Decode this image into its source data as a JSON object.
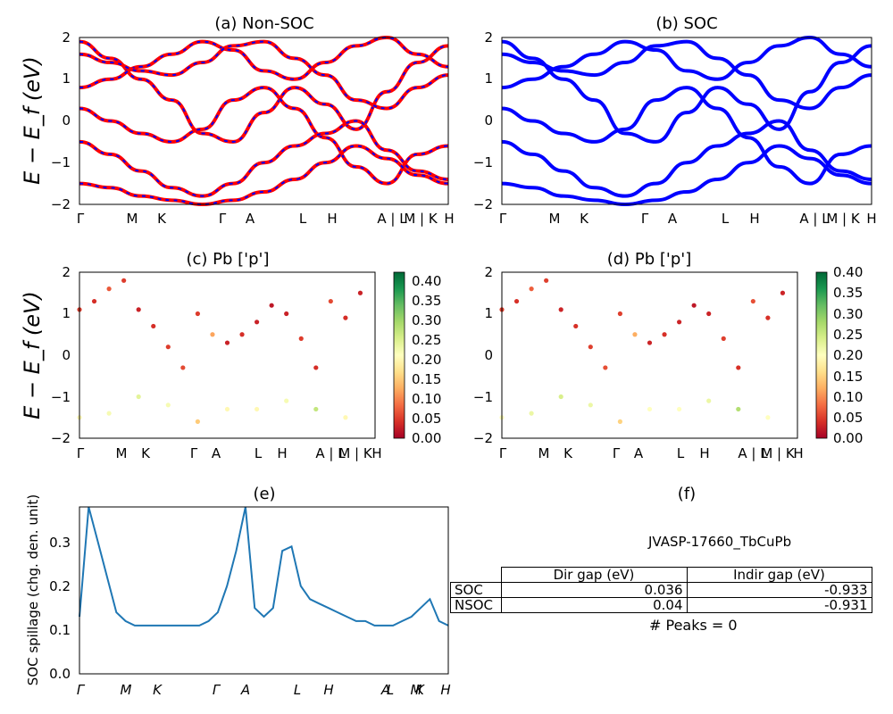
{
  "panels": {
    "a": {
      "title": "(a) Non-SOC",
      "ylabel": "E − E_f (eV)",
      "ylim": [
        -2,
        2
      ],
      "yticks": [
        "2",
        "1",
        "0",
        "−1",
        "−2"
      ],
      "kpoints": [
        "Γ",
        "M",
        "K",
        "Γ",
        "A",
        "L",
        "H",
        "A | L",
        "M | K",
        "H"
      ],
      "colors": {
        "band": "#ff0000",
        "dash": "#0000ff"
      }
    },
    "b": {
      "title": "(b) SOC",
      "ylim": [
        -2,
        2
      ],
      "yticks": [
        "2",
        "1",
        "0",
        "−1",
        "−2"
      ],
      "kpoints": [
        "Γ",
        "M",
        "K",
        "Γ",
        "A",
        "L",
        "H",
        "A | L",
        "M | K",
        "H"
      ],
      "colors": {
        "band": "#0000ff"
      }
    },
    "c": {
      "title": "(c)  Pb ['p']",
      "ylabel": "E − E_f (eV)",
      "yticks": [
        "2",
        "1",
        "0",
        "−1",
        "−2"
      ],
      "kpoints": [
        "Γ",
        "M",
        "K",
        "Γ",
        "A",
        "L",
        "H",
        "A | L",
        "M | K",
        "H"
      ],
      "colorbar_ticks": [
        "0.40",
        "0.35",
        "0.30",
        "0.25",
        "0.20",
        "0.15",
        "0.10",
        "0.05",
        "0.00"
      ]
    },
    "d": {
      "title": "(d) Pb ['p']",
      "yticks": [
        "2",
        "1",
        "0",
        "−1",
        "−2"
      ],
      "kpoints": [
        "Γ",
        "M",
        "K",
        "Γ",
        "A",
        "L",
        "H",
        "A | L",
        "M | K",
        "H"
      ],
      "colorbar_ticks": [
        "0.40",
        "0.35",
        "0.30",
        "0.25",
        "0.20",
        "0.15",
        "0.10",
        "0.05",
        "0.00"
      ]
    },
    "e": {
      "title": "(e)",
      "ylabel": "SOC spillage (chg. den. unit)",
      "yticks": [
        "0.3",
        "0.2",
        "0.1",
        "0.0"
      ],
      "kpoints": [
        "Γ",
        "M",
        "K",
        "Γ",
        "A",
        "L",
        "H",
        "A",
        "L",
        "M",
        "K",
        "H"
      ]
    },
    "f": {
      "title": "(f)",
      "material": "JVASP-17660_TbCuPb",
      "table": {
        "headers": [
          "Dir gap (eV)",
          "Indir gap (eV)"
        ],
        "rows": [
          {
            "label": "SOC",
            "dir": "0.036",
            "indir": "-0.933"
          },
          {
            "label": "NSOC",
            "dir": "0.04",
            "indir": "-0.931"
          }
        ]
      },
      "peaks": "# Peaks = 0"
    }
  },
  "chart_data": [
    {
      "type": "line",
      "title": "(a) Non-SOC",
      "ylabel": "E − E_f (eV)",
      "ylim": [
        -2,
        2
      ],
      "x_tick_labels": [
        "Γ",
        "M",
        "K",
        "Γ",
        "A",
        "L",
        "H",
        "A | L",
        "M | K",
        "H"
      ],
      "series": [
        {
          "values": [
            1.9,
            1.5,
            1.0,
            0.5,
            -0.3,
            -0.5,
            0.2,
            0.8,
            0.4,
            -0.2,
            0.7,
            1.4,
            1.8
          ]
        },
        {
          "values": [
            0.3,
            0.0,
            -0.3,
            -0.5,
            -0.2,
            0.5,
            0.8,
            0.3,
            -0.4,
            -1.1,
            -1.5,
            -0.8,
            -0.6
          ]
        },
        {
          "values": [
            0.8,
            1.0,
            1.3,
            1.6,
            1.9,
            1.7,
            1.2,
            1.0,
            1.4,
            1.8,
            2.0,
            1.6,
            1.3
          ]
        },
        {
          "values": [
            -0.5,
            -0.8,
            -1.2,
            -1.6,
            -1.8,
            -1.5,
            -1.0,
            -0.6,
            -0.3,
            0.0,
            -0.7,
            -1.2,
            -1.4
          ]
        },
        {
          "values": [
            -1.5,
            -1.6,
            -1.8,
            -1.9,
            -2.0,
            -1.9,
            -1.7,
            -1.4,
            -1.0,
            -0.6,
            -0.9,
            -1.3,
            -1.5
          ]
        },
        {
          "values": [
            1.6,
            1.4,
            1.2,
            1.1,
            1.4,
            1.8,
            1.9,
            1.5,
            1.1,
            0.5,
            0.3,
            0.8,
            1.1
          ]
        }
      ]
    },
    {
      "type": "line",
      "title": "(b) SOC",
      "ylim": [
        -2,
        2
      ],
      "x_tick_labels": [
        "Γ",
        "M",
        "K",
        "Γ",
        "A",
        "L",
        "H",
        "A | L",
        "M | K",
        "H"
      ],
      "series": [
        {
          "values": [
            1.9,
            1.5,
            1.0,
            0.5,
            -0.3,
            -0.5,
            0.2,
            0.8,
            0.4,
            -0.2,
            0.7,
            1.4,
            1.8
          ]
        },
        {
          "values": [
            0.3,
            0.0,
            -0.3,
            -0.5,
            -0.2,
            0.5,
            0.8,
            0.3,
            -0.4,
            -1.1,
            -1.5,
            -0.8,
            -0.6
          ]
        },
        {
          "values": [
            0.8,
            1.0,
            1.3,
            1.6,
            1.9,
            1.7,
            1.2,
            1.0,
            1.4,
            1.8,
            2.0,
            1.6,
            1.3
          ]
        },
        {
          "values": [
            -0.5,
            -0.8,
            -1.2,
            -1.6,
            -1.8,
            -1.5,
            -1.0,
            -0.6,
            -0.3,
            0.0,
            -0.7,
            -1.2,
            -1.4
          ]
        },
        {
          "values": [
            -1.5,
            -1.6,
            -1.8,
            -1.9,
            -2.0,
            -1.9,
            -1.7,
            -1.4,
            -1.0,
            -0.6,
            -0.9,
            -1.3,
            -1.5
          ]
        },
        {
          "values": [
            1.6,
            1.4,
            1.2,
            1.1,
            1.4,
            1.8,
            1.9,
            1.5,
            1.1,
            0.5,
            0.3,
            0.8,
            1.1
          ]
        }
      ]
    },
    {
      "type": "scatter",
      "title": "(c)  Pb ['p']",
      "ylim": [
        -2,
        2
      ],
      "colorbar_range": [
        0.0,
        0.42
      ],
      "colormap": [
        "#a50026",
        "#d73027",
        "#f46d43",
        "#fdae61",
        "#fee08b",
        "#ffffbf",
        "#d9ef8b",
        "#a6d96a",
        "#66bd63",
        "#1a9850",
        "#006837"
      ],
      "points": [
        {
          "x": 0.0,
          "y": 1.1,
          "w": 0.05
        },
        {
          "x": 0.05,
          "y": 1.3,
          "w": 0.04
        },
        {
          "x": 0.1,
          "y": 1.6,
          "w": 0.07
        },
        {
          "x": 0.15,
          "y": 1.8,
          "w": 0.05
        },
        {
          "x": 0.2,
          "y": 1.1,
          "w": 0.03
        },
        {
          "x": 0.25,
          "y": 0.7,
          "w": 0.04
        },
        {
          "x": 0.3,
          "y": 0.2,
          "w": 0.05
        },
        {
          "x": 0.35,
          "y": -0.3,
          "w": 0.06
        },
        {
          "x": 0.4,
          "y": 1.0,
          "w": 0.05
        },
        {
          "x": 0.45,
          "y": 0.5,
          "w": 0.12
        },
        {
          "x": 0.5,
          "y": 0.3,
          "w": 0.03
        },
        {
          "x": 0.55,
          "y": 0.5,
          "w": 0.04
        },
        {
          "x": 0.6,
          "y": 0.8,
          "w": 0.03
        },
        {
          "x": 0.65,
          "y": 1.2,
          "w": 0.02
        },
        {
          "x": 0.7,
          "y": 1.0,
          "w": 0.03
        },
        {
          "x": 0.75,
          "y": 0.4,
          "w": 0.05
        },
        {
          "x": 0.8,
          "y": -0.3,
          "w": 0.04
        },
        {
          "x": 0.85,
          "y": 1.3,
          "w": 0.06
        },
        {
          "x": 0.9,
          "y": 0.9,
          "w": 0.04
        },
        {
          "x": 0.95,
          "y": 1.5,
          "w": 0.03
        },
        {
          "x": 0.0,
          "y": -1.5,
          "w": 0.2
        },
        {
          "x": 0.1,
          "y": -1.4,
          "w": 0.22
        },
        {
          "x": 0.2,
          "y": -1.0,
          "w": 0.24
        },
        {
          "x": 0.3,
          "y": -1.2,
          "w": 0.22
        },
        {
          "x": 0.4,
          "y": -1.6,
          "w": 0.15
        },
        {
          "x": 0.5,
          "y": -1.3,
          "w": 0.2
        },
        {
          "x": 0.6,
          "y": -1.3,
          "w": 0.2
        },
        {
          "x": 0.7,
          "y": -1.1,
          "w": 0.22
        },
        {
          "x": 0.8,
          "y": -1.3,
          "w": 0.27
        },
        {
          "x": 0.9,
          "y": -1.5,
          "w": 0.2
        }
      ]
    },
    {
      "type": "scatter",
      "title": "(d) Pb ['p']",
      "ylim": [
        -2,
        2
      ],
      "colorbar_range": [
        0.0,
        0.4
      ],
      "colormap": [
        "#a50026",
        "#d73027",
        "#f46d43",
        "#fdae61",
        "#fee08b",
        "#ffffbf",
        "#d9ef8b",
        "#a6d96a",
        "#66bd63",
        "#1a9850",
        "#006837"
      ],
      "points": [
        {
          "x": 0.0,
          "y": 1.1,
          "w": 0.05
        },
        {
          "x": 0.05,
          "y": 1.3,
          "w": 0.04
        },
        {
          "x": 0.1,
          "y": 1.6,
          "w": 0.07
        },
        {
          "x": 0.15,
          "y": 1.8,
          "w": 0.05
        },
        {
          "x": 0.2,
          "y": 1.1,
          "w": 0.03
        },
        {
          "x": 0.25,
          "y": 0.7,
          "w": 0.04
        },
        {
          "x": 0.3,
          "y": 0.2,
          "w": 0.05
        },
        {
          "x": 0.35,
          "y": -0.3,
          "w": 0.06
        },
        {
          "x": 0.4,
          "y": 1.0,
          "w": 0.05
        },
        {
          "x": 0.45,
          "y": 0.5,
          "w": 0.12
        },
        {
          "x": 0.5,
          "y": 0.3,
          "w": 0.03
        },
        {
          "x": 0.55,
          "y": 0.5,
          "w": 0.04
        },
        {
          "x": 0.6,
          "y": 0.8,
          "w": 0.03
        },
        {
          "x": 0.65,
          "y": 1.2,
          "w": 0.02
        },
        {
          "x": 0.7,
          "y": 1.0,
          "w": 0.03
        },
        {
          "x": 0.75,
          "y": 0.4,
          "w": 0.05
        },
        {
          "x": 0.8,
          "y": -0.3,
          "w": 0.04
        },
        {
          "x": 0.85,
          "y": 1.3,
          "w": 0.06
        },
        {
          "x": 0.9,
          "y": 0.9,
          "w": 0.04
        },
        {
          "x": 0.95,
          "y": 1.5,
          "w": 0.03
        },
        {
          "x": 0.0,
          "y": -1.5,
          "w": 0.2
        },
        {
          "x": 0.1,
          "y": -1.4,
          "w": 0.22
        },
        {
          "x": 0.2,
          "y": -1.0,
          "w": 0.24
        },
        {
          "x": 0.3,
          "y": -1.2,
          "w": 0.22
        },
        {
          "x": 0.4,
          "y": -1.6,
          "w": 0.15
        },
        {
          "x": 0.5,
          "y": -1.3,
          "w": 0.2
        },
        {
          "x": 0.6,
          "y": -1.3,
          "w": 0.2
        },
        {
          "x": 0.7,
          "y": -1.1,
          "w": 0.22
        },
        {
          "x": 0.8,
          "y": -1.3,
          "w": 0.27
        },
        {
          "x": 0.9,
          "y": -1.5,
          "w": 0.2
        }
      ]
    },
    {
      "type": "line",
      "title": "(e)",
      "ylabel": "SOC spillage (chg. den. unit)",
      "ylim": [
        0.0,
        0.38
      ],
      "x_tick_labels": [
        "Γ",
        "M",
        "K",
        "Γ",
        "A",
        "L",
        "H",
        "A",
        "L",
        "M",
        "K",
        "H"
      ],
      "series": [
        {
          "x": [
            0,
            1,
            2,
            3,
            4,
            5,
            6,
            7,
            8,
            9,
            10,
            11,
            12,
            13,
            14,
            15,
            16,
            17,
            18,
            19,
            20,
            21,
            22,
            23,
            24,
            25,
            26,
            27,
            28,
            29,
            30,
            31,
            32,
            33,
            34,
            35,
            36,
            37,
            38,
            39,
            40
          ],
          "values": [
            0.13,
            0.38,
            0.3,
            0.22,
            0.14,
            0.12,
            0.11,
            0.11,
            0.11,
            0.11,
            0.11,
            0.11,
            0.11,
            0.11,
            0.12,
            0.14,
            0.2,
            0.28,
            0.38,
            0.15,
            0.13,
            0.15,
            0.28,
            0.29,
            0.2,
            0.17,
            0.16,
            0.15,
            0.14,
            0.13,
            0.12,
            0.12,
            0.11,
            0.11,
            0.11,
            0.12,
            0.13,
            0.15,
            0.17,
            0.12,
            0.11
          ]
        }
      ]
    }
  ]
}
